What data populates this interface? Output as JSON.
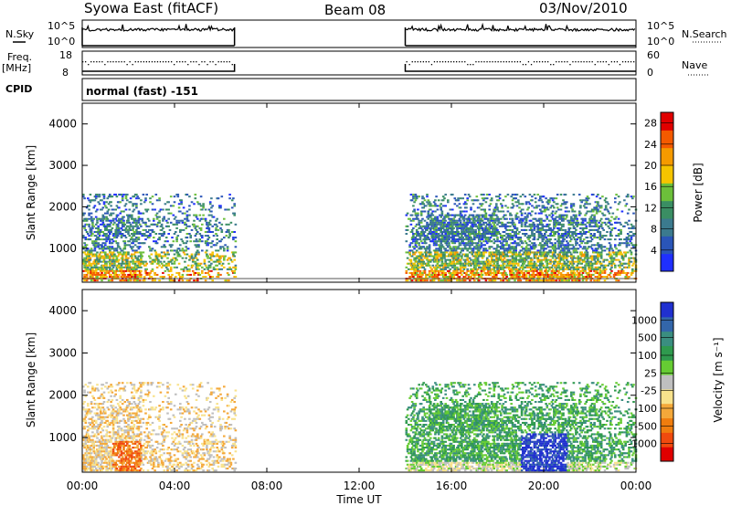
{
  "header": {
    "station": "Syowa East (fitACF)",
    "beam": "Beam 08",
    "date": "03/Nov/2010"
  },
  "noise_panel": {
    "left_label": "N.Sky",
    "right_label": "N.Search",
    "ticks_left": [
      "10^5",
      "10^0"
    ],
    "ticks_right": [
      "10^5",
      "10^0"
    ]
  },
  "freq_panel": {
    "left_label_1": "Freq.",
    "left_label_2": "[MHz]",
    "right_label": "Nave",
    "ticks_left": [
      "18",
      "8"
    ],
    "ticks_right": [
      "60",
      "0"
    ]
  },
  "cpid_panel": {
    "label": "CPID",
    "text": "normal (fast) -151"
  },
  "colors": {
    "power": [
      "#1f2fff",
      "#2a55b8",
      "#3b7a8e",
      "#3a8e63",
      "#6cbf3a",
      "#f5c400",
      "#f59a00",
      "#f45a00",
      "#e10000"
    ],
    "velocity": [
      "#2030d0",
      "#3366aa",
      "#3a8e80",
      "#2f9a4e",
      "#66cc33",
      "#bfbfbf",
      "#f8e28c",
      "#f4a83a",
      "#f07d0e",
      "#f04a0e",
      "#e00000"
    ]
  },
  "chart_data": [
    {
      "type": "heatmap",
      "name": "power",
      "ylabel": "Slant Range [km]",
      "ylim": [
        180,
        4500
      ],
      "yticks": [
        "1000",
        "2000",
        "3000",
        "4000"
      ],
      "ytick_values": [
        1000,
        2000,
        3000,
        4000
      ],
      "colorbar_label": "Power [dB]",
      "colorbar_ticks": [
        "4",
        "8",
        "12",
        "16",
        "20",
        "24",
        "28"
      ],
      "colorbar_range": [
        0,
        30
      ],
      "data_gaps_hours": [
        [
          6.6,
          14.0
        ]
      ],
      "observed_ranges_km": [
        [
          180,
          2300
        ]
      ]
    },
    {
      "type": "heatmap",
      "name": "velocity",
      "ylabel": "Slant Range [km]",
      "ylim": [
        180,
        4500
      ],
      "yticks": [
        "1000",
        "2000",
        "3000",
        "4000"
      ],
      "ytick_values": [
        1000,
        2000,
        3000,
        4000
      ],
      "colorbar_label": "Velocity [m s⁻¹]",
      "colorbar_ticks": [
        "1000",
        "500",
        "100",
        "25",
        "-25",
        "-100",
        "-500",
        "-1000"
      ],
      "data_gaps_hours": [
        [
          6.6,
          14.0
        ]
      ],
      "observed_ranges_km": [
        [
          180,
          2300
        ]
      ]
    }
  ],
  "x_axis": {
    "label": "Time UT",
    "ticks": [
      "00:00",
      "04:00",
      "08:00",
      "12:00",
      "16:00",
      "20:00",
      "00:00"
    ],
    "tick_hours": [
      0,
      4,
      8,
      12,
      16,
      20,
      24
    ],
    "xlim": [
      0,
      24
    ]
  }
}
